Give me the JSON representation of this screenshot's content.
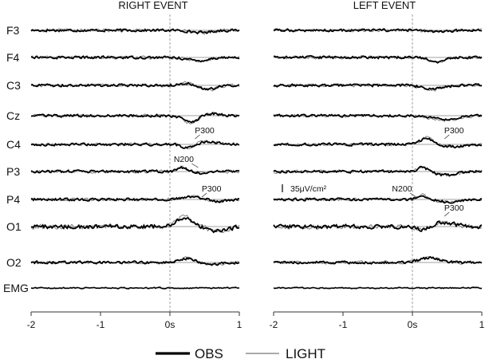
{
  "chart_data": {
    "type": "line",
    "colors": {
      "obs": "#000000",
      "light": "#7a7a7a",
      "axis": "#333333"
    },
    "channels": [
      "F3",
      "F4",
      "C3",
      "Cz",
      "C4",
      "P3",
      "P4",
      "O1",
      "O2",
      "EMG"
    ],
    "panels": [
      {
        "title": "RIGHT EVENT",
        "xlim": [
          -2,
          1
        ],
        "xticks": [
          "-2",
          "-1",
          "0s",
          "1"
        ],
        "onset_marker": 0,
        "annotations": [
          {
            "text": "P300",
            "channel": "C4",
            "x": 0.5
          },
          {
            "text": "N200",
            "channel": "P3",
            "x": 0.2
          },
          {
            "text": "P300",
            "channel": "P4",
            "x": 0.6
          }
        ],
        "responses": {
          "F3": [
            {
              "t": 0.45,
              "amp": -0.3,
              "w": 0.2
            }
          ],
          "F4": [
            {
              "t": 0.4,
              "amp": -0.45,
              "w": 0.2
            }
          ],
          "C3": [
            {
              "t": 0.25,
              "amp": 0.35,
              "w": 0.12
            },
            {
              "t": 0.55,
              "amp": -0.55,
              "w": 0.18
            }
          ],
          "Cz": [
            {
              "t": 0.3,
              "amp": -0.9,
              "w": 0.15
            },
            {
              "t": 0.6,
              "amp": 0.3,
              "w": 0.15
            }
          ],
          "C4": [
            {
              "t": 0.25,
              "amp": -0.5,
              "w": 0.12
            },
            {
              "t": 0.55,
              "amp": 0.4,
              "w": 0.18
            }
          ],
          "P3": [
            {
              "t": 0.18,
              "amp": 0.55,
              "w": 0.1
            },
            {
              "t": 0.45,
              "amp": -0.2,
              "w": 0.15
            }
          ],
          "P4": [
            {
              "t": 0.3,
              "amp": 0.4,
              "w": 0.2
            },
            {
              "t": 0.7,
              "amp": -0.25,
              "w": 0.15
            }
          ],
          "O1": [
            {
              "t": 0.2,
              "amp": 1.2,
              "w": 0.15
            },
            {
              "t": 0.7,
              "amp": -0.6,
              "w": 0.2
            }
          ],
          "O2": [
            {
              "t": 0.25,
              "amp": 0.55,
              "w": 0.15
            },
            {
              "t": 0.6,
              "amp": -0.3,
              "w": 0.15
            }
          ],
          "EMG": []
        }
      },
      {
        "title": "LEFT EVENT",
        "xlim": [
          -2,
          1
        ],
        "xticks": [
          "-2",
          "-1",
          "0s",
          "1"
        ],
        "onset_marker": 0,
        "annotations": [
          {
            "text": "P300",
            "channel": "C4",
            "x": 0.6
          },
          {
            "text": "N200",
            "channel": "P4",
            "x": -0.15
          },
          {
            "text": "P300",
            "channel": "P4",
            "x": 0.6
          }
        ],
        "scale_bar": "35μV/cm²",
        "responses": {
          "F3": [
            {
              "t": 0.4,
              "amp": -0.25,
              "w": 0.2
            }
          ],
          "F4": [
            {
              "t": 0.35,
              "amp": -0.6,
              "w": 0.15
            }
          ],
          "C3": [
            {
              "t": 0.3,
              "amp": -0.5,
              "w": 0.2
            }
          ],
          "Cz": [
            {
              "t": 0.45,
              "amp": -0.55,
              "w": 0.25
            }
          ],
          "C4": [
            {
              "t": 0.2,
              "amp": 0.85,
              "w": 0.12
            },
            {
              "t": 0.6,
              "amp": -0.3,
              "w": 0.2
            }
          ],
          "P3": [
            {
              "t": 0.15,
              "amp": 0.6,
              "w": 0.1
            },
            {
              "t": 0.5,
              "amp": -0.5,
              "w": 0.2
            }
          ],
          "P4": [
            {
              "t": 0.15,
              "amp": 0.5,
              "w": 0.1
            },
            {
              "t": 0.55,
              "amp": -0.35,
              "w": 0.2
            }
          ],
          "O1": [
            {
              "t": 0.15,
              "amp": -0.5,
              "w": 0.12
            },
            {
              "t": 0.45,
              "amp": 0.55,
              "w": 0.2
            }
          ],
          "O2": [
            {
              "t": 0.25,
              "amp": 0.65,
              "w": 0.2
            }
          ],
          "EMG": []
        }
      }
    ],
    "legend": [
      {
        "label": "OBS",
        "style": "thick"
      },
      {
        "label": "LIGHT",
        "style": "thin"
      }
    ]
  }
}
